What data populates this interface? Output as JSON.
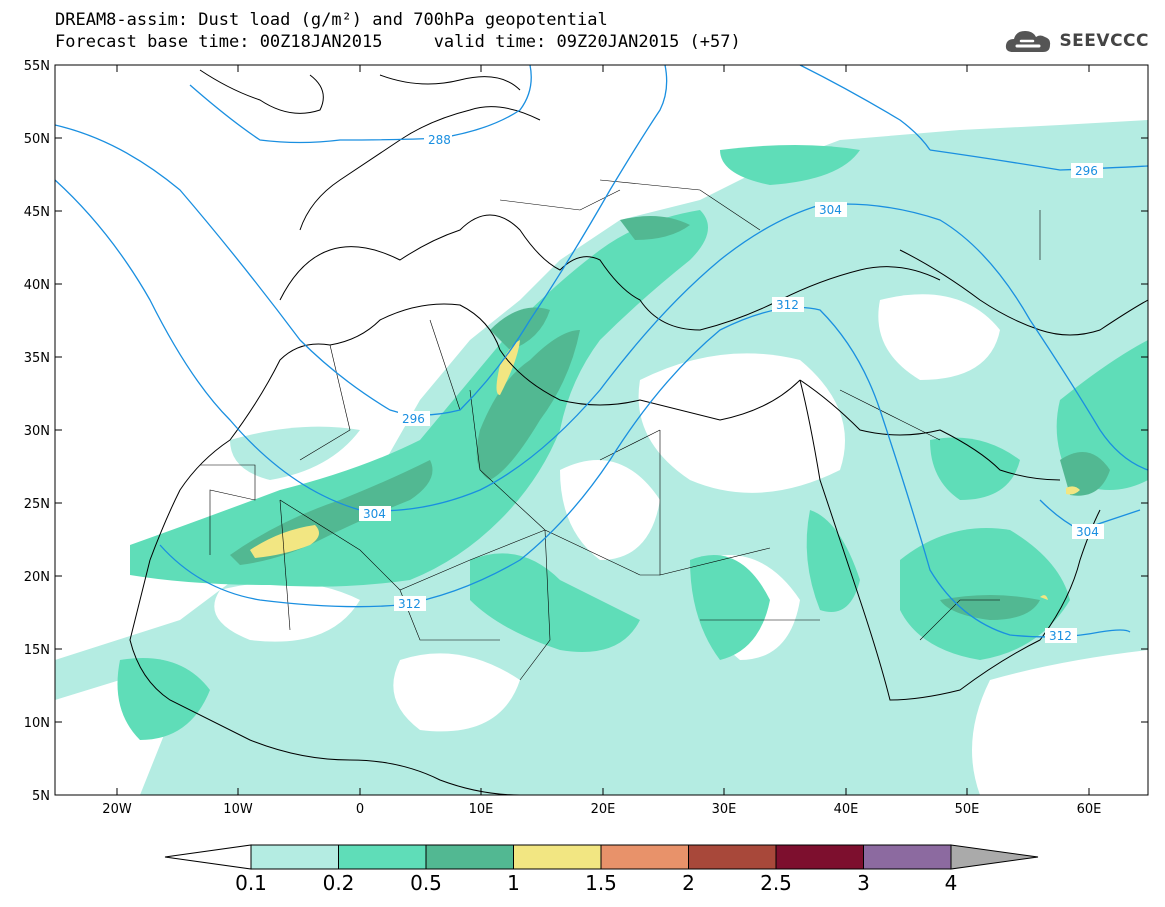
{
  "header": {
    "line1": "DREAM8-assim: Dust load (g/m²) and 700hPa geopotential",
    "line2": "Forecast base time: 00Z18JAN2015     valid time: 09Z20JAN2015 (+57)"
  },
  "logo": {
    "text": "SEEVCCC",
    "icon": "cloud-logo-icon"
  },
  "axes": {
    "lat_labels": [
      "55N",
      "50N",
      "45N",
      "40N",
      "35N",
      "30N",
      "25N",
      "20N",
      "15N",
      "10N",
      "5N"
    ],
    "lon_labels": [
      "20W",
      "10W",
      "0",
      "10E",
      "20E",
      "30E",
      "40E",
      "50E",
      "60E"
    ]
  },
  "colorbar": {
    "levels": [
      "0.1",
      "0.2",
      "0.5",
      "1",
      "1.5",
      "2",
      "2.5",
      "3",
      "4"
    ],
    "colors": [
      "#b4ece2",
      "#5fddb8",
      "#52b892",
      "#f2e682",
      "#e8926a",
      "#a8483a",
      "#7d0f2e",
      "#8c6aa0"
    ],
    "under_color": "#ffffff",
    "over_color": "#aaaaaa"
  },
  "contour_labels": [
    "288",
    "296",
    "304",
    "312",
    "296",
    "304",
    "312",
    "304",
    "312"
  ],
  "colors": {
    "contour": "#1a8fe0",
    "coast": "#000000"
  }
}
